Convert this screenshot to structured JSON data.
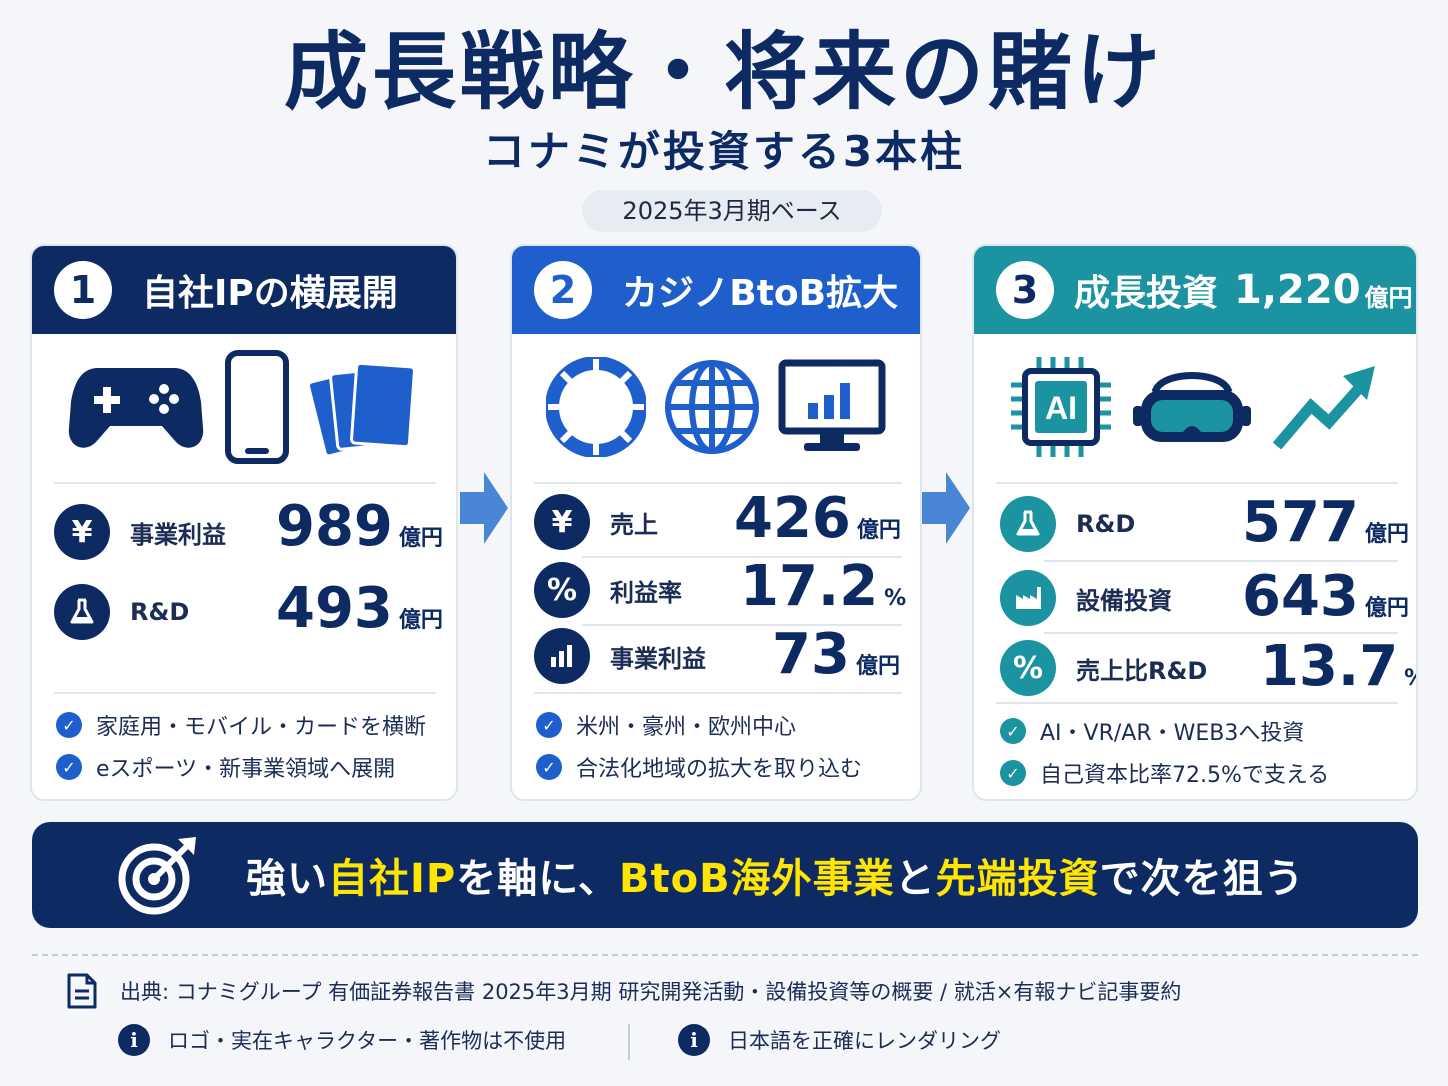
{
  "title": "成長戦略・将来の賭け",
  "subtitle": "コナミが投資する3本柱",
  "basis": "2025年3月期ベース",
  "colors": {
    "navy": "#0d2a63",
    "blue": "#1f5fcc",
    "teal": "#1c93a1",
    "yellow": "#ffe500"
  },
  "pillars": [
    {
      "number": "1",
      "title": "自社IPの横展開",
      "icons": [
        "gamepad-icon",
        "smartphone-icon",
        "cards-icon"
      ],
      "metrics": [
        {
          "icon": "yen-icon",
          "label": "事業利益",
          "value": "989",
          "unit": "億円"
        },
        {
          "icon": "flask-icon",
          "label": "R&D",
          "value": "493",
          "unit": "億円"
        }
      ],
      "checks": [
        "家庭用・モバイル・カードを横断",
        "eスポーツ・新事業領域へ展開"
      ]
    },
    {
      "number": "2",
      "title": "カジノBtoB拡大",
      "icons": [
        "casino-chip-icon",
        "globe-icon",
        "monitor-chart-icon"
      ],
      "metrics": [
        {
          "icon": "yen-icon",
          "label": "売上",
          "value": "426",
          "unit": "億円"
        },
        {
          "icon": "percent-icon",
          "label": "利益率",
          "value": "17.2",
          "unit": "%"
        },
        {
          "icon": "bar-chart-icon",
          "label": "事業利益",
          "value": "73",
          "unit": "億円"
        }
      ],
      "checks": [
        "米州・豪州・欧州中心",
        "合法化地域の拡大を取り込む"
      ]
    },
    {
      "number": "3",
      "title": "成長投資",
      "title_value": "1,220",
      "title_unit": "億円",
      "icons": [
        "ai-chip-icon",
        "vr-headset-icon",
        "trend-arrow-icon"
      ],
      "metrics": [
        {
          "icon": "flask-icon",
          "label": "R&D",
          "value": "577",
          "unit": "億円"
        },
        {
          "icon": "factory-icon",
          "label": "設備投資",
          "value": "643",
          "unit": "億円"
        },
        {
          "icon": "percent-icon",
          "label": "売上比R&D",
          "value": "13.7",
          "unit": "%"
        }
      ],
      "checks": [
        "AI・VR/AR・WEB3へ投資",
        "自己資本比率72.5%で支える"
      ]
    }
  ],
  "banner": {
    "icon": "target-icon",
    "parts": [
      "強い",
      "自社IP",
      "を軸に、",
      "BtoB海外事業",
      "と",
      "先端投資",
      "で次を狙う"
    ]
  },
  "source": "出典: コナミグループ 有価証券報告書 2025年3月期 研究開発活動・設備投資等の概要 / 就活×有報ナビ記事要約",
  "notes": [
    "ロゴ・実在キャラクター・著作物は不使用",
    "日本語を正確にレンダリング"
  ]
}
